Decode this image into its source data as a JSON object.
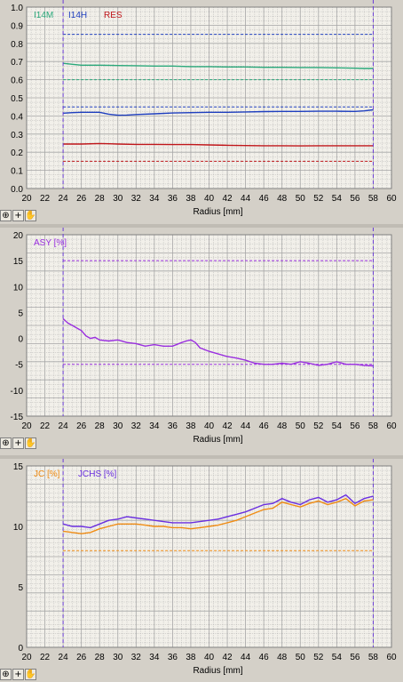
{
  "toolbar": {
    "icons": [
      "zoom-icon",
      "crosshair-icon",
      "pan-hand-icon"
    ],
    "glyphs": [
      "⊕",
      "+",
      "✋"
    ]
  },
  "colors": {
    "grid": "#a6a6a6",
    "plot_bg": "#f2f0ea",
    "marker": "#6a3cd6",
    "i14m": "#2aa87a",
    "i14h": "#1f3fbf",
    "res": "#c0161a",
    "asy": "#9a2ee0",
    "jc": "#f08c14",
    "jchs": "#6a2ee0"
  },
  "chart_data": [
    {
      "type": "line",
      "xlabel": "Radius [mm]",
      "ylabel": "",
      "xlim": [
        20,
        60
      ],
      "ylim": [
        0,
        1.0
      ],
      "x_ticks": [
        "20",
        "22",
        "24",
        "26",
        "28",
        "30",
        "32",
        "34",
        "36",
        "38",
        "40",
        "42",
        "44",
        "46",
        "48",
        "50",
        "52",
        "54",
        "56",
        "58",
        "60"
      ],
      "y_ticks": [
        "0.0",
        "0.1",
        "0.2",
        "0.3",
        "0.4",
        "0.5",
        "0.6",
        "0.7",
        "0.8",
        "0.9",
        "1.0"
      ],
      "markers_x": [
        24,
        58
      ],
      "legend": [
        "I14M",
        "I14H",
        "RES"
      ],
      "series": [
        {
          "name": "I14M",
          "color_key": "i14m",
          "x": [
            24,
            25,
            26,
            28,
            30,
            32,
            34,
            36,
            38,
            40,
            42,
            44,
            46,
            48,
            50,
            52,
            54,
            56,
            57,
            58
          ],
          "y": [
            0.69,
            0.685,
            0.68,
            0.68,
            0.678,
            0.677,
            0.675,
            0.675,
            0.672,
            0.672,
            0.67,
            0.67,
            0.668,
            0.668,
            0.667,
            0.667,
            0.665,
            0.663,
            0.662,
            0.662
          ]
        },
        {
          "name": "I14H",
          "color_key": "i14h",
          "x": [
            24,
            25,
            26,
            28,
            29,
            30,
            31,
            32,
            34,
            36,
            38,
            40,
            42,
            44,
            46,
            48,
            50,
            52,
            54,
            56,
            57,
            58
          ],
          "y": [
            0.415,
            0.418,
            0.42,
            0.42,
            0.41,
            0.404,
            0.405,
            0.408,
            0.412,
            0.416,
            0.418,
            0.42,
            0.42,
            0.422,
            0.424,
            0.425,
            0.425,
            0.426,
            0.426,
            0.425,
            0.428,
            0.434
          ]
        },
        {
          "name": "RES",
          "color_key": "res",
          "x": [
            24,
            26,
            28,
            30,
            32,
            34,
            36,
            38,
            40,
            42,
            44,
            46,
            48,
            50,
            52,
            54,
            56,
            58
          ],
          "y": [
            0.245,
            0.245,
            0.248,
            0.245,
            0.243,
            0.243,
            0.242,
            0.242,
            0.24,
            0.238,
            0.237,
            0.236,
            0.236,
            0.235,
            0.236,
            0.236,
            0.236,
            0.236
          ]
        }
      ],
      "limits": [
        {
          "y": 0.85,
          "color_key": "i14h"
        },
        {
          "y": 0.45,
          "color_key": "i14h"
        },
        {
          "y": 0.6,
          "color_key": "i14m"
        },
        {
          "y": 0.15,
          "color_key": "res"
        }
      ]
    },
    {
      "type": "line",
      "xlabel": "Radius [mm]",
      "ylabel": "",
      "xlim": [
        20,
        60
      ],
      "ylim": [
        -15,
        20
      ],
      "x_ticks": [
        "20",
        "22",
        "24",
        "26",
        "28",
        "30",
        "32",
        "34",
        "36",
        "38",
        "40",
        "42",
        "44",
        "46",
        "48",
        "50",
        "52",
        "54",
        "56",
        "58",
        "60"
      ],
      "y_ticks": [
        "-15",
        "-10",
        "-5",
        "0",
        "5",
        "10",
        "15",
        "20"
      ],
      "markers_x": [
        24,
        58
      ],
      "legend": [
        "ASY [%]"
      ],
      "series": [
        {
          "name": "ASY [%]",
          "color_key": "asy",
          "x": [
            24,
            24.5,
            25,
            25.5,
            26,
            26.5,
            27,
            27.5,
            28,
            29,
            30,
            31,
            32,
            33,
            34,
            35,
            36,
            37,
            37.5,
            38,
            38.5,
            39,
            40,
            41,
            42,
            43,
            44,
            45,
            46,
            47,
            48,
            49,
            50,
            51,
            52,
            53,
            54,
            55,
            56,
            57,
            58
          ],
          "y": [
            3.8,
            3.0,
            2.5,
            2.0,
            1.5,
            0.5,
            0.0,
            0.2,
            -0.3,
            -0.5,
            -0.3,
            -0.8,
            -1.0,
            -1.5,
            -1.2,
            -1.5,
            -1.5,
            -0.8,
            -0.5,
            -0.3,
            -0.8,
            -1.8,
            -2.5,
            -3.0,
            -3.5,
            -3.8,
            -4.2,
            -4.8,
            -5.0,
            -5.0,
            -4.8,
            -5.0,
            -4.5,
            -4.8,
            -5.2,
            -5.0,
            -4.5,
            -5.0,
            -5.0,
            -5.2,
            -5.3
          ]
        }
      ],
      "limits": [
        {
          "y": 15,
          "color_key": "asy"
        },
        {
          "y": -5,
          "color_key": "asy"
        }
      ]
    },
    {
      "type": "line",
      "xlabel": "Radius [mm]",
      "ylabel": "",
      "xlim": [
        20,
        60
      ],
      "ylim": [
        0,
        15
      ],
      "x_ticks": [
        "20",
        "22",
        "24",
        "26",
        "28",
        "30",
        "32",
        "34",
        "36",
        "38",
        "40",
        "42",
        "44",
        "46",
        "48",
        "50",
        "52",
        "54",
        "56",
        "58",
        "60"
      ],
      "y_ticks": [
        "0",
        "5",
        "10",
        "15"
      ],
      "markers_x": [
        24,
        58
      ],
      "legend": [
        "JC [%]",
        "JCHS [%]"
      ],
      "series": [
        {
          "name": "JCHS [%]",
          "color_key": "jchs",
          "x": [
            24,
            25,
            26,
            27,
            28,
            29,
            30,
            31,
            32,
            33,
            34,
            35,
            36,
            37,
            38,
            39,
            40,
            41,
            42,
            43,
            44,
            45,
            46,
            47,
            48,
            49,
            50,
            51,
            52,
            53,
            54,
            55,
            56,
            57,
            58
          ],
          "y": [
            10.2,
            10.0,
            10.0,
            9.9,
            10.2,
            10.5,
            10.6,
            10.8,
            10.7,
            10.6,
            10.5,
            10.4,
            10.3,
            10.3,
            10.3,
            10.4,
            10.5,
            10.6,
            10.8,
            11.0,
            11.2,
            11.5,
            11.8,
            11.9,
            12.3,
            12.0,
            11.8,
            12.2,
            12.4,
            12.0,
            12.2,
            12.6,
            11.9,
            12.3,
            12.5
          ]
        },
        {
          "name": "JC [%]",
          "color_key": "jc",
          "x": [
            24,
            25,
            26,
            27,
            28,
            29,
            30,
            31,
            32,
            33,
            34,
            35,
            36,
            37,
            38,
            39,
            40,
            41,
            42,
            43,
            44,
            45,
            46,
            47,
            48,
            49,
            50,
            51,
            52,
            53,
            54,
            55,
            56,
            57,
            58
          ],
          "y": [
            9.6,
            9.5,
            9.4,
            9.5,
            9.8,
            10.0,
            10.2,
            10.2,
            10.2,
            10.1,
            10.0,
            10.0,
            9.9,
            9.9,
            9.8,
            9.9,
            10.0,
            10.1,
            10.3,
            10.5,
            10.8,
            11.1,
            11.4,
            11.5,
            12.0,
            11.8,
            11.6,
            11.9,
            12.1,
            11.8,
            12.0,
            12.3,
            11.7,
            12.1,
            12.2
          ]
        }
      ],
      "limits": [
        {
          "y": 8,
          "color_key": "jc"
        }
      ]
    }
  ]
}
